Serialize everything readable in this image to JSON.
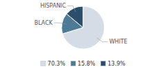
{
  "chart_data": {
    "type": "pie",
    "categories": [
      "WHITE",
      "BLACK",
      "HISPANIC"
    ],
    "values": [
      70.3,
      15.8,
      13.9
    ],
    "value_labels": [
      "70.3%",
      "15.8%",
      "13.9%"
    ],
    "colors": [
      "#d4dce6",
      "#4d7a96",
      "#2b4f6b"
    ],
    "legend": "bottom"
  }
}
